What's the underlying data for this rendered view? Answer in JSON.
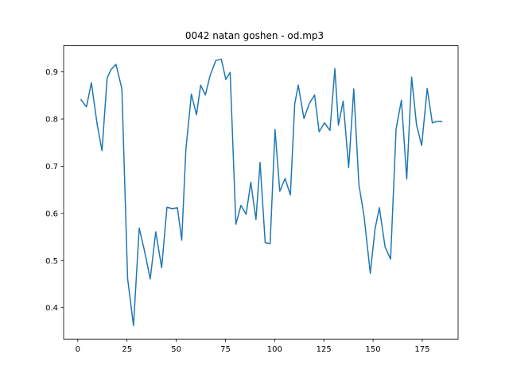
{
  "chart_data": {
    "type": "line",
    "title": "0042 natan goshen - od.mp3",
    "xlabel": "",
    "ylabel": "",
    "xlim": [
      -7.2,
      193.2
    ],
    "ylim": [
      0.3335,
      0.9555
    ],
    "xticks": [
      0,
      25,
      50,
      75,
      100,
      125,
      150,
      175
    ],
    "yticks": [
      0.4,
      0.5,
      0.6,
      0.7,
      0.8,
      0.9
    ],
    "ytick_labels": [
      "0.4",
      "0.5",
      "0.6",
      "0.7",
      "0.8",
      "0.9"
    ],
    "grid": false,
    "series": [
      {
        "color": "#1f77b4",
        "x": [
          1.6,
          4.4,
          6.9,
          9.9,
          12.3,
          14.9,
          16.9,
          19.4,
          22.4,
          25.3,
          28.3,
          31.2,
          33.8,
          36.8,
          39.6,
          42.6,
          45.3,
          48.0,
          50.6,
          52.8,
          54.9,
          57.7,
          60.3,
          62.4,
          64.8,
          67.2,
          70.1,
          72.9,
          75.2,
          77.4,
          80.3,
          82.9,
          85.5,
          87.9,
          90.5,
          92.6,
          95.2,
          97.7,
          100.2,
          102.6,
          105.3,
          108.0,
          110.2,
          112.0,
          114.9,
          117.6,
          120.3,
          122.6,
          125.3,
          128.1,
          130.6,
          132.4,
          134.8,
          137.6,
          140.2,
          142.8,
          145.4,
          148.6,
          151.0,
          153.2,
          156.1,
          158.9,
          161.7,
          164.4,
          167.1,
          169.6,
          172.1,
          174.7,
          177.5,
          180.1,
          182.5,
          184.9
        ],
        "y": [
          0.841,
          0.826,
          0.877,
          0.787,
          0.733,
          0.887,
          0.905,
          0.916,
          0.864,
          0.462,
          0.362,
          0.569,
          0.522,
          0.461,
          0.561,
          0.485,
          0.613,
          0.61,
          0.612,
          0.543,
          0.735,
          0.853,
          0.809,
          0.872,
          0.851,
          0.892,
          0.924,
          0.927,
          0.884,
          0.899,
          0.577,
          0.617,
          0.598,
          0.666,
          0.587,
          0.708,
          0.538,
          0.536,
          0.778,
          0.647,
          0.674,
          0.639,
          0.832,
          0.872,
          0.801,
          0.833,
          0.851,
          0.773,
          0.792,
          0.776,
          0.907,
          0.787,
          0.838,
          0.697,
          0.864,
          0.661,
          0.595,
          0.473,
          0.567,
          0.612,
          0.529,
          0.503,
          0.779,
          0.84,
          0.673,
          0.889,
          0.787,
          0.744,
          0.865,
          0.792,
          0.795,
          0.795
        ]
      }
    ]
  }
}
